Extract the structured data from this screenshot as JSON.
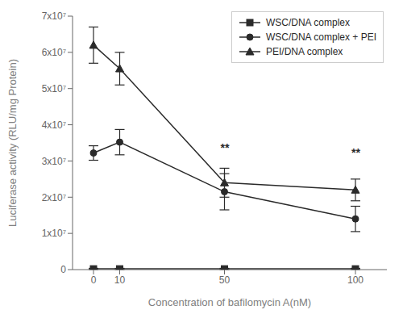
{
  "chart_data": {
    "type": "line",
    "xlabel": "Concentration of bafilomycin A(nM)",
    "ylabel": "Luciferase activity (RLU/mg Protein)",
    "x": [
      0,
      10,
      50,
      100
    ],
    "xlim": [
      -8,
      112
    ],
    "xticks": [
      0,
      10,
      50,
      100
    ],
    "ylim": [
      0,
      70000000
    ],
    "yticks": [
      0,
      {
        "value": 10000000,
        "label": "1x10⁷"
      },
      {
        "value": 20000000,
        "label": "2x10⁷"
      },
      {
        "value": 30000000,
        "label": "3x10⁷"
      },
      {
        "value": 40000000,
        "label": "4x10⁷"
      },
      {
        "value": 50000000,
        "label": "5x10⁷"
      },
      {
        "value": 60000000,
        "label": "6x10⁷"
      },
      {
        "value": 70000000,
        "label": "7x10⁷"
      }
    ],
    "grid": false,
    "legend": "upper right",
    "series": [
      {
        "name": "WSC/DNA complex",
        "color": "#2a2a2a",
        "marker": "square",
        "line_style": "solid",
        "values": [
          200000,
          200000,
          200000,
          200000
        ],
        "errors": [
          150000,
          150000,
          150000,
          150000
        ]
      },
      {
        "name": "WSC/DNA complex + PEI",
        "color": "#2a2a2a",
        "marker": "circle",
        "line_style": "solid",
        "values": [
          32200000,
          35200000,
          21500000,
          14000000
        ],
        "errors": [
          2000000,
          3500000,
          5000000,
          3500000
        ]
      },
      {
        "name": "PEI/DNA complex",
        "color": "#2a2a2a",
        "marker": "triangle",
        "line_style": "solid",
        "values": [
          62000000,
          55500000,
          24000000,
          22000000
        ],
        "errors": [
          5000000,
          4500000,
          4000000,
          3000000
        ]
      }
    ],
    "annotations": [
      {
        "x": 50,
        "y": 31500000,
        "text": "**"
      },
      {
        "x": 100,
        "y": 30000000,
        "text": "**"
      }
    ]
  }
}
